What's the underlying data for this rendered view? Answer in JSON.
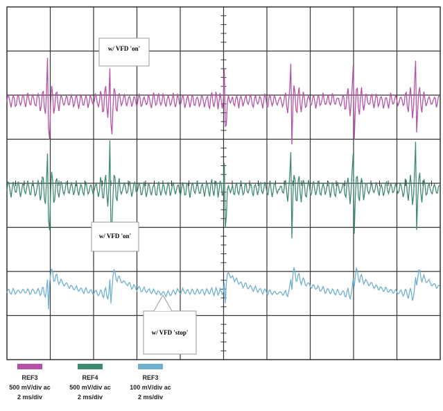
{
  "callouts": [
    "w/ VFD 'on'",
    "w/ VFD 'on'",
    "w/ VFD 'stop'"
  ],
  "legend": [
    {
      "name": "REF3",
      "scale": "500 mV/div ac",
      "time": "2 ms/div",
      "color": "#b452a8"
    },
    {
      "name": "REF4",
      "scale": "500 mV/div ac",
      "time": "2 ms/div",
      "color": "#3f8a6c"
    },
    {
      "name": "REF3",
      "scale": "100 mV/div ac",
      "time": "2 ms/div",
      "color": "#6fb0d0"
    }
  ]
}
